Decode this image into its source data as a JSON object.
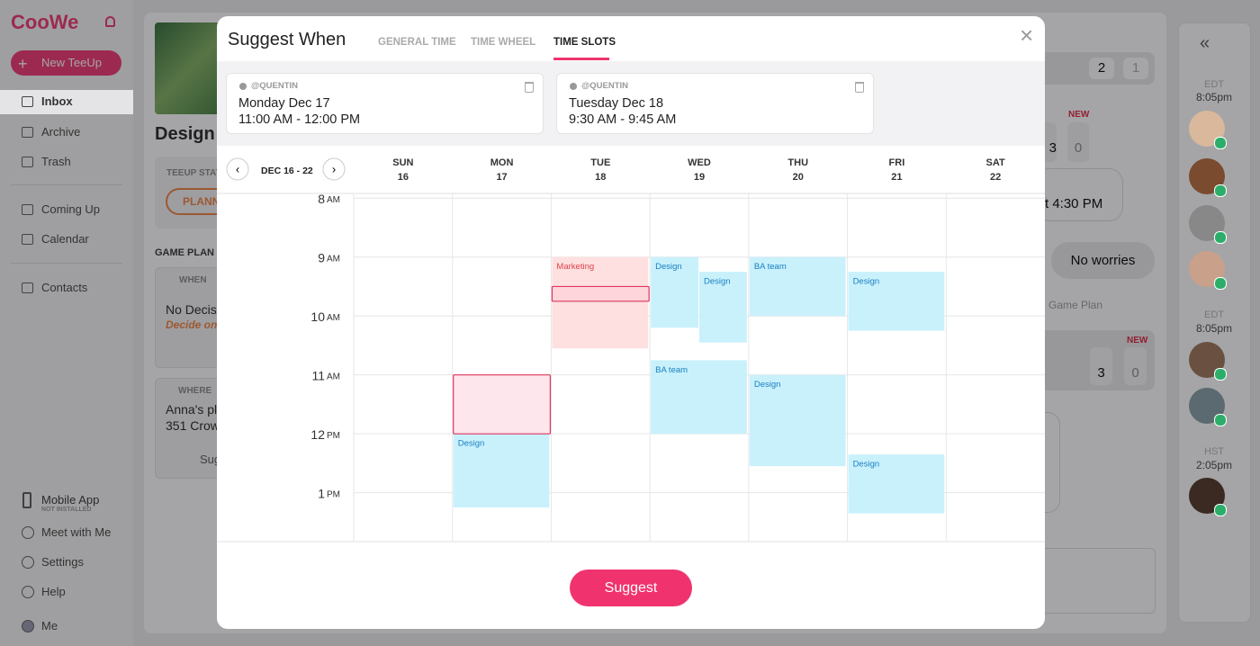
{
  "app": {
    "logo": "CooWe",
    "new_button": "New TeeUp",
    "nav": [
      "Inbox",
      "Archive",
      "Trash",
      "Coming Up",
      "Calendar",
      "Contacts"
    ],
    "mobile_app": "Mobile App",
    "not_installed": "NOT INSTALLED",
    "bottom_nav": [
      "Meet with Me",
      "Settings",
      "Help",
      "Me"
    ],
    "teeup": {
      "title": "Design v",
      "status_label": "TEEUP STAT",
      "status": "PLANN",
      "game_plan": "GAME PLAN",
      "when_label": "WHEN",
      "when_value": "No Decis",
      "when_hint": "Decide on",
      "where_label": "WHERE",
      "where_value": "Anna's pl",
      "where_address": "351 Crow",
      "suggest": "Sug"
    },
    "chat": {
      "counts": [
        "2",
        "1"
      ],
      "new_1": "NEW",
      "votes_1": [
        "3",
        "0"
      ],
      "message": "t 4:30 PM",
      "reply": "No worries",
      "note": "Game Plan",
      "new_2": "NEW",
      "votes_2": [
        "3",
        "0"
      ]
    },
    "zones": [
      {
        "zone": "EDT",
        "time": "8:05pm"
      },
      {
        "zone": "EDT",
        "time": "8:05pm"
      },
      {
        "zone": "HST",
        "time": "2:05pm"
      }
    ]
  },
  "modal": {
    "title": "Suggest When",
    "tabs": [
      "GENERAL TIME",
      "TIME WHEEL",
      "TIME SLOTS"
    ],
    "active_tab": 2,
    "slots": [
      {
        "user": "@QUENTIN",
        "date": "Monday Dec 17",
        "time": "11:00 AM - 12:00 PM"
      },
      {
        "user": "@QUENTIN",
        "date": "Tuesday Dec 18",
        "time": "9:30 AM - 9:45 AM"
      }
    ],
    "range": "DEC 16 - 22",
    "days": [
      {
        "name": "SUN",
        "num": "16"
      },
      {
        "name": "MON",
        "num": "17"
      },
      {
        "name": "TUE",
        "num": "18"
      },
      {
        "name": "WED",
        "num": "19"
      },
      {
        "name": "THU",
        "num": "20"
      },
      {
        "name": "FRI",
        "num": "21"
      },
      {
        "name": "SAT",
        "num": "22"
      }
    ],
    "time_range": [
      7.92,
      13.83
    ],
    "hours": [
      {
        "value": 8,
        "label": "8",
        "period": "AM"
      },
      {
        "value": 9,
        "label": "9",
        "period": "AM"
      },
      {
        "value": 10,
        "label": "10",
        "period": "AM"
      },
      {
        "value": 11,
        "label": "11",
        "period": "AM"
      },
      {
        "value": 12,
        "label": "12",
        "period": "PM"
      },
      {
        "value": 13,
        "label": "1",
        "period": "PM"
      }
    ],
    "events": [
      {
        "label": "Marketing",
        "day": 2,
        "start": 9,
        "end": 10.55,
        "color": "#fde0df",
        "label_color": "#e0434b"
      },
      {
        "label": "Design",
        "day": 1,
        "start": 12,
        "end": 13.25,
        "color": "#c9f1fc",
        "label_color": "#1a7fc0"
      },
      {
        "label": "Design",
        "day": 3,
        "start": 9,
        "end": 10.2,
        "color": "#c9f1fc",
        "label_color": "#1a7fc0"
      },
      {
        "label": "Design",
        "day": 3,
        "start": 9.25,
        "end": 10.45,
        "color": "#c9f1fc",
        "label_color": "#1a7fc0"
      },
      {
        "label": "BA team",
        "day": 3,
        "start": 10.75,
        "end": 12,
        "color": "#c9f1fc",
        "label_color": "#1a7fc0"
      },
      {
        "label": "BA team",
        "day": 4,
        "start": 9,
        "end": 10,
        "color": "#c9f1fc",
        "label_color": "#1a7fc0"
      },
      {
        "label": "Design",
        "day": 4,
        "start": 11,
        "end": 12.55,
        "color": "#c9f1fc",
        "label_color": "#1a7fc0"
      },
      {
        "label": "Design",
        "day": 5,
        "start": 9.25,
        "end": 10.25,
        "color": "#c9f1fc",
        "label_color": "#1a7fc0"
      },
      {
        "label": "Design",
        "day": 5,
        "start": 12.35,
        "end": 13.35,
        "color": "#c9f1fc",
        "label_color": "#1a7fc0"
      }
    ],
    "selections": [
      {
        "day": 1,
        "start": 11,
        "end": 12
      },
      {
        "day": 2,
        "start": 9.5,
        "end": 9.75
      }
    ],
    "button": "Suggest"
  }
}
